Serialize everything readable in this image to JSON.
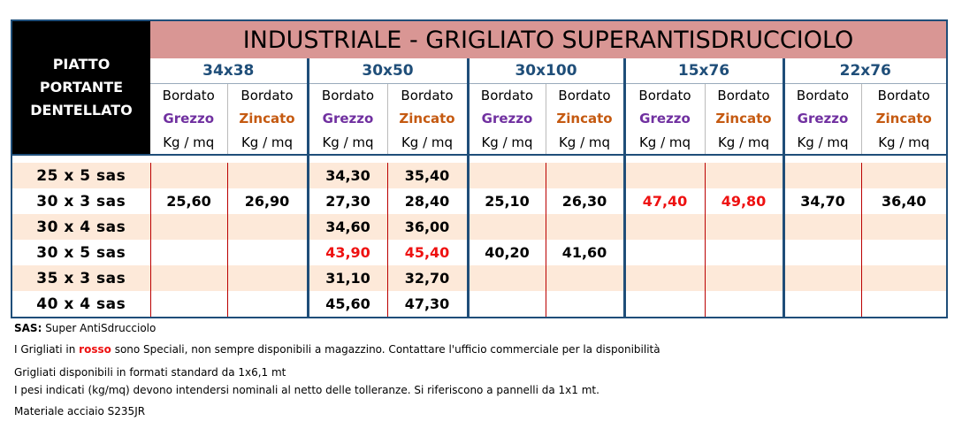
{
  "table": {
    "title": "INDUSTRIALE - GRIGLIATO SUPERANTISDRUCCIOLO",
    "corner_label": [
      "PIATTO",
      "PORTANTE",
      "DENTELLATO"
    ],
    "sizes": [
      "34x38",
      "30x50",
      "30x100",
      "15x76",
      "22x76"
    ],
    "sub_headers": {
      "bordato": "Bordato",
      "grezzo": "Grezzo",
      "zincato": "Zincato",
      "unit": "Kg / mq"
    },
    "rows": [
      {
        "label": "25 x 5 sas",
        "values": [
          "",
          "",
          "34,30",
          "35,40",
          "",
          "",
          "",
          "",
          "",
          ""
        ]
      },
      {
        "label": "30 x 3 sas",
        "values": [
          "25,60",
          "26,90",
          "27,30",
          "28,40",
          "25,10",
          "26,30",
          "47,40",
          "49,80",
          "34,70",
          "36,40"
        ]
      },
      {
        "label": "30 x 4 sas",
        "values": [
          "",
          "",
          "34,60",
          "36,00",
          "",
          "",
          "",
          "",
          "",
          ""
        ]
      },
      {
        "label": "30 x 5 sas",
        "values": [
          "",
          "",
          "43,90",
          "45,40",
          "40,20",
          "41,60",
          "",
          "",
          "",
          ""
        ]
      },
      {
        "label": "35 x 3 sas",
        "values": [
          "",
          "",
          "31,10",
          "32,70",
          "",
          "",
          "",
          "",
          "",
          ""
        ]
      },
      {
        "label": "40 x 4 sas",
        "values": [
          "",
          "",
          "45,60",
          "47,30",
          "",
          "",
          "",
          "",
          "",
          ""
        ]
      }
    ],
    "red_cells": [
      [
        1,
        6
      ],
      [
        1,
        7
      ],
      [
        3,
        2
      ],
      [
        3,
        3
      ]
    ]
  },
  "notes": {
    "sas_key": "SAS:",
    "sas_text": " Super AntiSdrucciolo",
    "line2_before": "I Grigliati in ",
    "line2_red": "rosso",
    "line2_after": " sono Speciali, non sempre disponibili a magazzino. Contattare l'ufficio commerciale per la disponibilità",
    "line3": "Grigliati disponibili in formati standard da 1x6,1 mt",
    "line4": "I pesi indicati (kg/mq) devono intendersi nominali al netto delle tolleranze. Si riferiscono a pannelli da 1x1 mt.",
    "line5": "Materiale acciaio S235JR"
  },
  "colors": {
    "title_bg": "#d99694",
    "size_text": "#1f4e79",
    "grezzo": "#7030a0",
    "zincato": "#c55a11",
    "special": "#ee1111",
    "row_alt": "#fde9d9"
  }
}
